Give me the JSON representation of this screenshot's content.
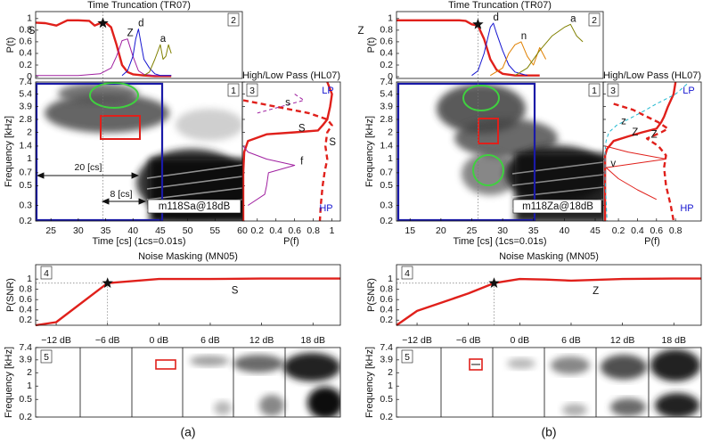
{
  "figures": [
    {
      "label": "(a)",
      "time_truncation": {
        "title": "Time Truncation (TR07)",
        "ylabel": "P(t)",
        "panel": "2",
        "xlim": [
          22.2,
          60
        ],
        "ylim": [
          -0.03,
          1.12
        ],
        "yticks": [
          0,
          0.2,
          0.4,
          0.6,
          0.8,
          1
        ],
        "series": [
          {
            "name": "S",
            "color": "#e0201b",
            "style": "thick",
            "x": [
              22.2,
              24,
              26,
              28,
              30,
              32,
              33,
              34,
              35,
              36,
              37,
              38,
              39,
              40,
              42,
              44,
              47
            ],
            "values": [
              0.93,
              0.92,
              0.88,
              0.97,
              0.97,
              0.96,
              0.88,
              0.92,
              0.93,
              0.85,
              0.55,
              0.2,
              0.08,
              0.04,
              0.02,
              0.01,
              0.01
            ]
          },
          {
            "name": "Z",
            "color": "#a020a0",
            "style": "thin",
            "x": [
              22.2,
              30,
              34,
              36,
              37,
              38,
              39,
              40,
              41,
              42,
              44,
              47
            ],
            "values": [
              0.02,
              0.02,
              0.05,
              0.15,
              0.35,
              0.62,
              0.65,
              0.35,
              0.1,
              0.04,
              0.02,
              0.02
            ]
          },
          {
            "name": "d",
            "color": "#1515d0",
            "style": "thin",
            "x": [
              38,
              39,
              40,
              40.5,
              41,
              41.5,
              42,
              43,
              44,
              45,
              47
            ],
            "values": [
              0.02,
              0.1,
              0.35,
              0.65,
              0.82,
              0.55,
              0.3,
              0.15,
              0.05,
              0.02,
              0.02
            ]
          },
          {
            "name": "a",
            "color": "#808000",
            "style": "thin",
            "x": [
              42,
              43,
              44,
              45,
              45.5,
              46,
              46.5,
              47
            ],
            "values": [
              0.02,
              0.08,
              0.3,
              0.55,
              0.3,
              0.35,
              0.55,
              0.4
            ]
          }
        ],
        "star": {
          "x": 34.5,
          "value": 0.92
        }
      },
      "spectrogram": {
        "panel": "1",
        "xlabel": "Time [cs] (1cs=0.01s)",
        "ylabel": "Frequency [kHz]",
        "xlim": [
          22.2,
          60
        ],
        "xticks": [
          25,
          30,
          35,
          40,
          45,
          50,
          55,
          60
        ],
        "scale": "log",
        "ylim": [
          0.2,
          7.4
        ],
        "yticks": [
          0.2,
          0.3,
          0.5,
          0.7,
          1,
          1.4,
          2,
          2.8,
          3.9,
          5.4,
          7.4
        ],
        "annotations": [
          "20 [cs]",
          "8 [cs]",
          "m118Sa@18dB"
        ]
      },
      "high_low_pass": {
        "title": "High/Low Pass (HL07)",
        "panel": "3",
        "xlabel": "P(f)",
        "lp_label": "LP",
        "hp_label": "HP",
        "xlim": [
          0.04,
          1.09
        ],
        "xticks": [
          0.2,
          0.4,
          0.6,
          0.8,
          1
        ],
        "series": [
          {
            "name": "S",
            "color": "#e0201b",
            "style": "thick",
            "freq": [
              7.4,
              5.4,
              3.9,
              2.8,
              2.4,
              2.1,
              2.0,
              1.9,
              1.6,
              1.2,
              0.7,
              0.3,
              0.2
            ],
            "values": [
              0.95,
              1.0,
              0.98,
              0.95,
              0.9,
              0.85,
              0.6,
              0.3,
              0.1,
              0.06,
              0.05,
              0.05,
              0.05
            ]
          },
          {
            "name": "S",
            "color": "#e0201b",
            "style": "thick-dashed",
            "freq": [
              4.6,
              3.9,
              3.3,
              2.8,
              2.4,
              2,
              1.4,
              1,
              0.7,
              0.5,
              0.3,
              0.2
            ],
            "values": [
              0.05,
              0.4,
              0.75,
              0.95,
              1.0,
              0.95,
              0.93,
              0.95,
              0.92,
              0.9,
              0.88,
              0.87
            ]
          },
          {
            "name": "s",
            "color": "#a020a0",
            "style": "thin-dashed",
            "freq": [
              5.4,
              4.6,
              3.9,
              3.3
            ],
            "values": [
              0.6,
              0.7,
              0.45,
              0.2
            ]
          },
          {
            "name": "f",
            "color": "#a020a0",
            "style": "thin",
            "freq": [
              0.3,
              0.4,
              0.5,
              0.7,
              0.85,
              1.0,
              1.2,
              1.4
            ],
            "values": [
              0.1,
              0.28,
              0.3,
              0.32,
              0.6,
              0.3,
              0.1,
              0.05
            ]
          }
        ]
      },
      "noise_masking": {
        "title": "Noise Masking (MN05)",
        "panel": "4",
        "ylabel": "P(SNR)",
        "xlim": [
          -14.4,
          21.2
        ],
        "xticks": [
          {
            "value": -12,
            "label": "−12 dB"
          },
          {
            "value": -6,
            "label": "−6 dB"
          },
          {
            "value": 0,
            "label": "0 dB"
          },
          {
            "value": 6,
            "label": "6 dB"
          },
          {
            "value": 12,
            "label": "12 dB"
          },
          {
            "value": 18,
            "label": "18 dB"
          }
        ],
        "ylim": [
          0.1,
          1.28
        ],
        "yticks": [
          0.2,
          0.4,
          0.6,
          0.8,
          1
        ],
        "series": [
          {
            "name": "S",
            "color": "#e0201b",
            "style": "thick",
            "x": [
              -14.4,
              -12,
              -6,
              0,
              6,
              12,
              18,
              21.2
            ],
            "values": [
              0.1,
              0.16,
              0.92,
              1.0,
              1.0,
              1.01,
              1.01,
              1.01
            ]
          }
        ],
        "star": {
          "x": -6,
          "value": 0.92
        }
      },
      "masked_spectrograms": {
        "panel": "5",
        "ylabel": "Frequency [kHz]",
        "scale": "log",
        "ylim": [
          0.2,
          7.4
        ],
        "yticks": [
          0.2,
          0.5,
          1,
          2,
          3.9,
          7.4
        ]
      }
    },
    {
      "label": "(b)",
      "time_truncation": {
        "title": "Time Truncation (TR07)",
        "ylabel": "P(t)",
        "panel": "2",
        "xlim": [
          12.8,
          46.3
        ],
        "ylim": [
          -0.03,
          1.12
        ],
        "yticks": [
          0,
          0.2,
          0.4,
          0.6,
          0.8,
          1
        ],
        "series": [
          {
            "name": "Z",
            "color": "#e0201b",
            "style": "thick",
            "x": [
              12.8,
              16,
              20,
              23,
              24,
              25,
              26,
              27,
              28,
              29,
              30,
              32,
              36
            ],
            "values": [
              0.97,
              0.97,
              0.97,
              0.97,
              0.96,
              0.9,
              0.88,
              0.65,
              0.3,
              0.12,
              0.05,
              0.02,
              0.02
            ]
          },
          {
            "name": "d",
            "color": "#1515d0",
            "style": "thin",
            "x": [
              25,
              26,
              27,
              28,
              28.5,
              29,
              30,
              31,
              32,
              34
            ],
            "values": [
              0.02,
              0.1,
              0.4,
              0.85,
              0.92,
              0.75,
              0.45,
              0.2,
              0.08,
              0.02
            ]
          },
          {
            "name": "n",
            "color": "#e08000",
            "style": "thin",
            "x": [
              28,
              30,
              31,
              32,
              33,
              34,
              35,
              36,
              37
            ],
            "values": [
              0.02,
              0.15,
              0.4,
              0.55,
              0.6,
              0.35,
              0.2,
              0.5,
              0.3
            ]
          },
          {
            "name": "a",
            "color": "#808000",
            "style": "thin",
            "x": [
              32,
              34,
              36,
              38,
              40,
              41,
              42,
              43
            ],
            "values": [
              0.02,
              0.15,
              0.45,
              0.7,
              0.85,
              0.9,
              0.7,
              0.6
            ]
          }
        ],
        "star": {
          "x": 26,
          "value": 0.9
        }
      },
      "spectrogram": {
        "panel": "1",
        "xlabel": "Time [cs] (1cs=0.01s)",
        "ylabel": "Frequency [kHz]",
        "xlim": [
          12.8,
          46.3
        ],
        "xticks": [
          15,
          20,
          25,
          30,
          35,
          40,
          45
        ],
        "scale": "log",
        "ylim": [
          0.2,
          7.4
        ],
        "yticks": [
          0.2,
          0.3,
          0.5,
          0.7,
          1,
          1.4,
          2,
          2.8,
          3.9,
          5.4,
          7.4
        ],
        "annotations": [
          "m118Za@18dB"
        ]
      },
      "high_low_pass": {
        "title": "High/Low Pass (HL07)",
        "panel": "3",
        "xlabel": "P(f)",
        "lp_label": "LP",
        "hp_label": "HP",
        "xlim": [
          0.04,
          1.07
        ],
        "xticks": [
          0.2,
          0.4,
          0.6,
          0.8
        ],
        "series": [
          {
            "name": "Z",
            "color": "#e0201b",
            "style": "thick",
            "freq": [
              7.4,
              5.4,
              3.9,
              3.0,
              2.6,
              2.2,
              2.0,
              1.8,
              1.6,
              1.3,
              1.1,
              0.7,
              0.3,
              0.2
            ],
            "values": [
              0.8,
              0.78,
              0.72,
              0.68,
              0.65,
              0.6,
              0.45,
              0.3,
              0.15,
              0.08,
              0.06,
              0.06,
              0.06,
              0.06
            ]
          },
          {
            "name": "Z",
            "color": "#e0201b",
            "style": "thick-dashed",
            "freq": [
              4.2,
              3.6,
              3.0,
              2.6,
              2.2,
              2.0,
              1.7,
              1.4,
              1.1,
              0.8,
              0.5,
              0.3,
              0.2
            ],
            "values": [
              0.15,
              0.35,
              0.5,
              0.62,
              0.72,
              0.65,
              0.5,
              0.62,
              0.7,
              0.68,
              0.7,
              0.75,
              0.78
            ]
          },
          {
            "name": "z",
            "color": "#20b8d0",
            "style": "thin-dashed",
            "freq": [
              7,
              5.4,
              4.2,
              3.4,
              2.8,
              2.4,
              2.0,
              1.6,
              1.2,
              0.6,
              0.2
            ],
            "values": [
              0.92,
              0.8,
              0.6,
              0.45,
              0.3,
              0.18,
              0.1,
              0.07,
              0.06,
              0.06,
              0.08
            ]
          },
          {
            "name": "v",
            "color": "#e0201b",
            "style": "thin",
            "freq": [
              0.35,
              0.45,
              0.6,
              0.8,
              1.0,
              1.2,
              1.4
            ],
            "values": [
              0.6,
              0.4,
              0.2,
              0.07,
              0.7,
              0.3,
              0.06
            ]
          }
        ]
      },
      "noise_masking": {
        "title": "Noise Masking (MN05)",
        "panel": "4",
        "ylabel": "P(SNR)",
        "xlim": [
          -14.4,
          21.2
        ],
        "xticks": [
          {
            "value": -12,
            "label": "−12 dB"
          },
          {
            "value": -6,
            "label": "−6 dB"
          },
          {
            "value": 0,
            "label": "0 dB"
          },
          {
            "value": 6,
            "label": "6 dB"
          },
          {
            "value": 12,
            "label": "12 dB"
          },
          {
            "value": 18,
            "label": "18 dB"
          }
        ],
        "ylim": [
          0.1,
          1.28
        ],
        "yticks": [
          0.2,
          0.4,
          0.6,
          0.8,
          1
        ],
        "series": [
          {
            "name": "Z",
            "color": "#e0201b",
            "style": "thick",
            "x": [
              -14.4,
              -12,
              -9,
              -6,
              -3,
              0,
              3,
              6,
              12,
              18,
              21.2
            ],
            "values": [
              0.1,
              0.38,
              0.55,
              0.72,
              0.92,
              1.0,
              0.99,
              0.97,
              1.0,
              1.01,
              1.01
            ]
          }
        ],
        "star": {
          "x": -3,
          "value": 0.92
        }
      },
      "masked_spectrograms": {
        "panel": "5",
        "ylabel": "Frequency [kHz]",
        "scale": "log",
        "ylim": [
          0.2,
          7.4
        ],
        "yticks": [
          0.2,
          0.5,
          1,
          2,
          3.9,
          7.4
        ]
      }
    }
  ]
}
